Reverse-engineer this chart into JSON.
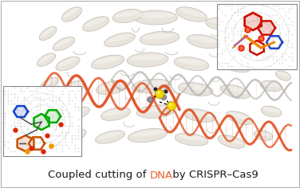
{
  "figsize": [
    3.76,
    2.36
  ],
  "dpi": 100,
  "bg_color": "#ffffff",
  "border_color": "#b0b0b0",
  "caption_text1": "Coupled cutting of ",
  "caption_dna": "DNA",
  "caption_text2": " by CRISPR–Cas9",
  "caption_color1": "#1a1a1a",
  "caption_dna_color": "#e8602c",
  "caption_color2": "#1a1a1a",
  "caption_fontsize": 9.5,
  "helix_orange": "#e05020",
  "helix_gray": "#b8b4b0",
  "protein_cream": "#e8e4dc",
  "protein_edge": "#c0bcb4",
  "inset_bg": "#d8d8d8",
  "inset_edge": "#888888"
}
